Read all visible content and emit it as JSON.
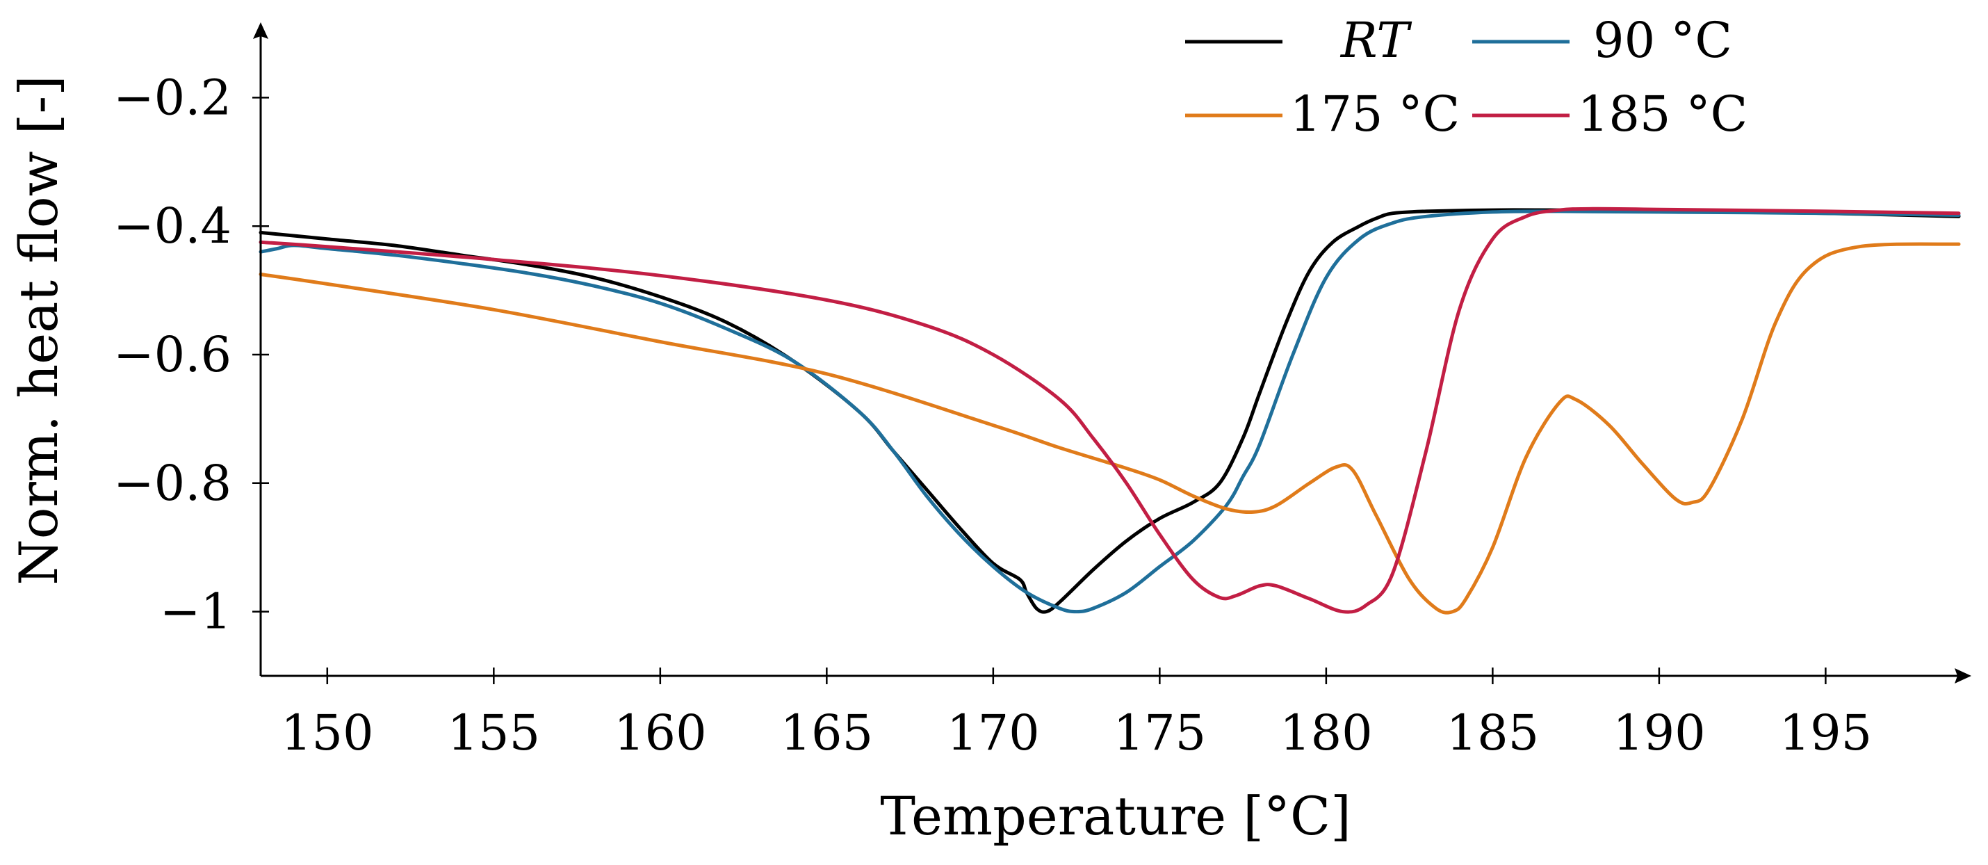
{
  "chart_data": {
    "type": "line",
    "title": "",
    "xlabel": "Temperature [°C]",
    "ylabel": "Norm. heat flow [-]",
    "xlim": [
      148,
      199
    ],
    "ylim": [
      -1.1,
      -0.1
    ],
    "x_ticks": [
      150,
      155,
      160,
      165,
      170,
      175,
      180,
      185,
      190,
      195
    ],
    "x_tick_labels": [
      "150",
      "155",
      "160",
      "165",
      "170",
      "175",
      "180",
      "185",
      "190",
      "195"
    ],
    "y_ticks": [
      -0.2,
      -0.4,
      -0.6,
      -0.8,
      -1.0
    ],
    "y_tick_labels": [
      "−0.2",
      "−0.4",
      "−0.6",
      "−0.8",
      "−1"
    ],
    "grid": false,
    "legend_position": "top-right",
    "series": [
      {
        "name": "RT",
        "color": "#000000",
        "x": [
          148,
          150,
          152,
          154,
          156,
          158,
          160,
          162,
          164,
          166,
          167,
          168,
          169,
          170,
          170.8,
          171,
          171.3,
          171.6,
          172,
          173,
          174,
          175,
          176,
          176.8,
          177.5,
          178,
          178.8,
          179.5,
          180.2,
          181,
          181.5,
          182,
          183,
          185,
          187,
          190,
          195,
          199
        ],
        "y": [
          -0.41,
          -0.42,
          -0.43,
          -0.445,
          -0.46,
          -0.48,
          -0.51,
          -0.55,
          -0.61,
          -0.69,
          -0.75,
          -0.81,
          -0.87,
          -0.925,
          -0.95,
          -0.97,
          -0.995,
          -1.0,
          -0.985,
          -0.935,
          -0.89,
          -0.855,
          -0.83,
          -0.8,
          -0.73,
          -0.66,
          -0.55,
          -0.47,
          -0.425,
          -0.4,
          -0.388,
          -0.38,
          -0.377,
          -0.375,
          -0.375,
          -0.376,
          -0.38,
          -0.385
        ]
      },
      {
        "name": "90 °C",
        "color": "#1f6f9a",
        "x": [
          148,
          148.5,
          149,
          150,
          152,
          154,
          156,
          158,
          160,
          162,
          164,
          166,
          167,
          168,
          169,
          170,
          171,
          172,
          172.5,
          173,
          174,
          175,
          176,
          177,
          177.5,
          178,
          179,
          180,
          181,
          182,
          183,
          185,
          187,
          190,
          195,
          199
        ],
        "y": [
          -0.44,
          -0.435,
          -0.43,
          -0.435,
          -0.445,
          -0.458,
          -0.473,
          -0.493,
          -0.52,
          -0.56,
          -0.61,
          -0.69,
          -0.75,
          -0.82,
          -0.88,
          -0.93,
          -0.97,
          -0.995,
          -1.0,
          -0.995,
          -0.97,
          -0.93,
          -0.89,
          -0.835,
          -0.79,
          -0.74,
          -0.6,
          -0.48,
          -0.42,
          -0.395,
          -0.385,
          -0.378,
          -0.377,
          -0.378,
          -0.38,
          -0.383
        ]
      },
      {
        "name": "175 °C",
        "color": "#e07b1a",
        "x": [
          148,
          150,
          155,
          160,
          165,
          170,
          172,
          174,
          175,
          176,
          177,
          177.8,
          178.5,
          179.5,
          180.3,
          180.8,
          181.5,
          182.5,
          183.3,
          183.8,
          184.2,
          185,
          186,
          187,
          187.5,
          188.5,
          189.5,
          190.5,
          191,
          191.5,
          192.5,
          193.5,
          194.5,
          196,
          199
        ],
        "y": [
          -0.475,
          -0.49,
          -0.53,
          -0.58,
          -0.63,
          -0.71,
          -0.745,
          -0.777,
          -0.795,
          -0.82,
          -0.84,
          -0.845,
          -0.835,
          -0.8,
          -0.775,
          -0.78,
          -0.85,
          -0.95,
          -0.995,
          -1.0,
          -0.98,
          -0.9,
          -0.76,
          -0.675,
          -0.67,
          -0.71,
          -0.77,
          -0.825,
          -0.83,
          -0.81,
          -0.7,
          -0.55,
          -0.465,
          -0.432,
          -0.428
        ]
      },
      {
        "name": "185 °C",
        "color": "#c21e44",
        "x": [
          148,
          150,
          155,
          160,
          165,
          168,
          170,
          172,
          173,
          174,
          175,
          176,
          176.8,
          177.3,
          178,
          178.5,
          179.5,
          180.5,
          181.2,
          182,
          183,
          184,
          185,
          186,
          187,
          188,
          190,
          195,
          199
        ],
        "y": [
          -0.425,
          -0.432,
          -0.452,
          -0.477,
          -0.515,
          -0.555,
          -0.6,
          -0.67,
          -0.73,
          -0.8,
          -0.88,
          -0.95,
          -0.978,
          -0.975,
          -0.96,
          -0.96,
          -0.98,
          -1.0,
          -0.99,
          -0.94,
          -0.75,
          -0.53,
          -0.42,
          -0.385,
          -0.375,
          -0.373,
          -0.374,
          -0.377,
          -0.38
        ]
      }
    ]
  }
}
